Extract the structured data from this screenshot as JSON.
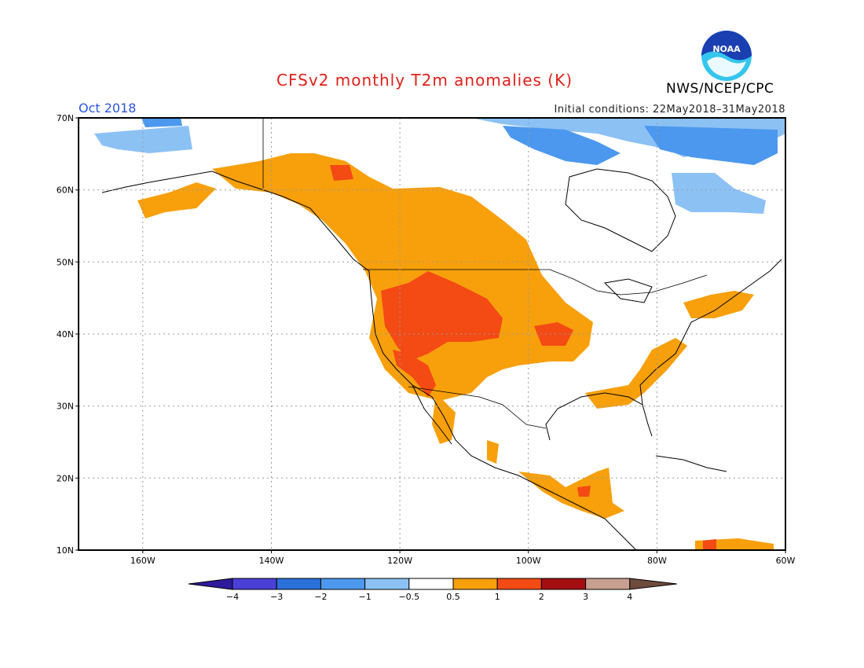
{
  "title": "CFSv2 monthly T2m anomalies (K)",
  "period": "Oct 2018",
  "initial_conditions": "Initial conditions: 22May2018–31May2018",
  "agency": "NWS/NCEP/CPC",
  "logo_text": "NOAA",
  "lat_labels": [
    "70N",
    "60N",
    "50N",
    "40N",
    "30N",
    "20N",
    "10N"
  ],
  "lon_labels": [
    "160W",
    "140W",
    "120W",
    "100W",
    "80W",
    "60W"
  ],
  "colorbar": {
    "labels": [
      "−4",
      "−3",
      "−2",
      "−1",
      "−0.5",
      "0.5",
      "1",
      "2",
      "3",
      "4"
    ],
    "colors": [
      "#2d1a9c",
      "#4a3fd6",
      "#2a6fd8",
      "#4c98ee",
      "#8cc1f4",
      "#ffffff",
      "#f7a00c",
      "#f44a14",
      "#a50f12",
      "#c8a08f",
      "#6e4b3d"
    ]
  },
  "colors": {
    "title": "#e0201a",
    "period": "#2a55e0",
    "noaa_blue": "#1a3fb0",
    "noaa_cyan": "#35c6ee"
  }
}
